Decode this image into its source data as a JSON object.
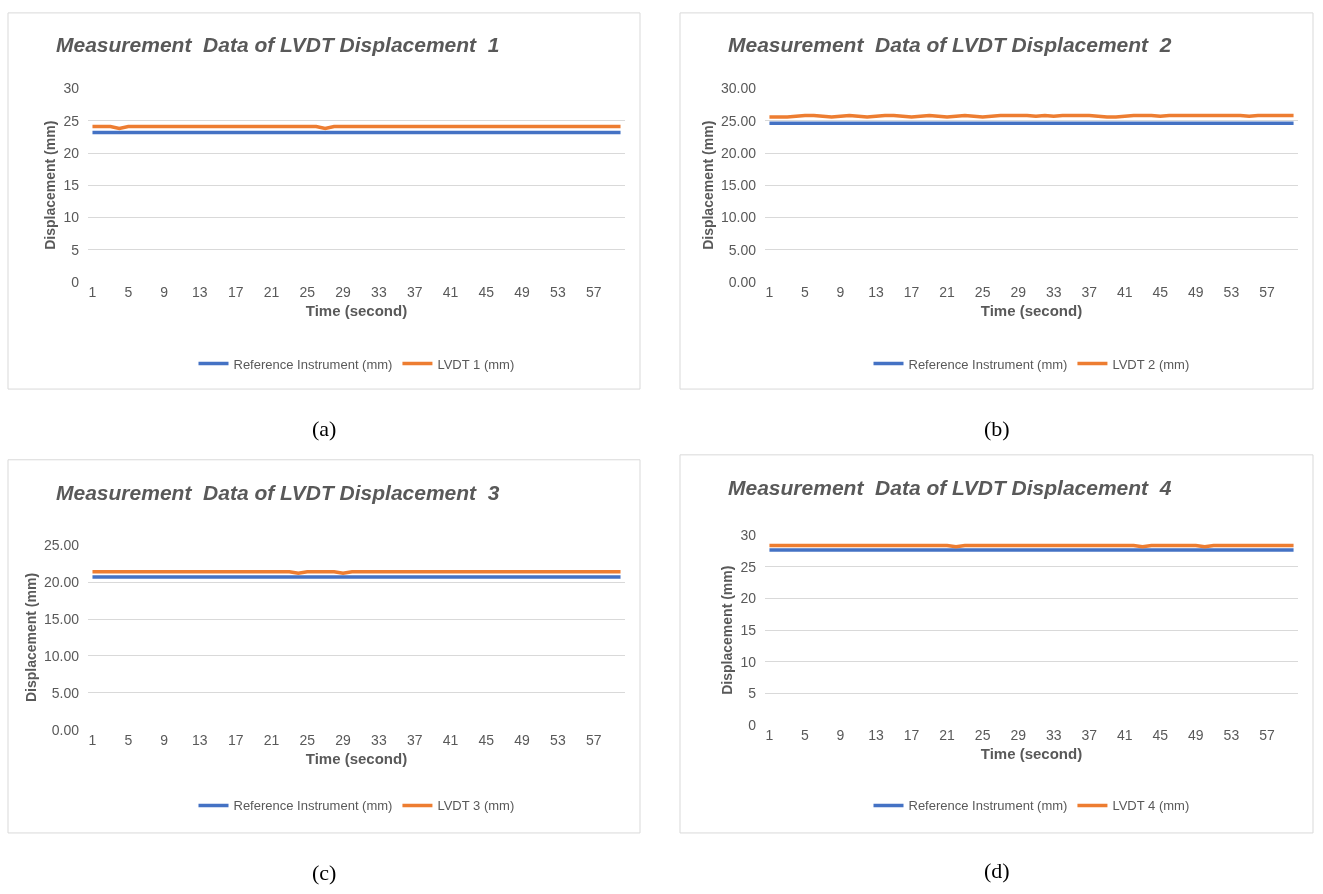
{
  "chart_data": [
    {
      "type": "line",
      "title": "Measurement  Data of LVDT Displacement  1",
      "xlabel": "Time (second)",
      "ylabel": "Displacement (mm)",
      "annotations": [
        "(a)"
      ],
      "grid": "y",
      "legend": "bottom",
      "marker": "none",
      "line_style": "solid",
      "ylim": [
        0,
        30
      ],
      "yticks": [
        0,
        5,
        10,
        15,
        20,
        25,
        30
      ],
      "categories": [
        "1",
        null,
        null,
        null,
        "5",
        null,
        null,
        null,
        "9",
        null,
        null,
        null,
        "13",
        null,
        null,
        null,
        "17",
        null,
        null,
        null,
        "21",
        null,
        null,
        null,
        "25",
        null,
        null,
        null,
        "29",
        null,
        null,
        null,
        "33",
        null,
        null,
        null,
        "37",
        null,
        null,
        null,
        "41",
        null,
        null,
        null,
        "45",
        null,
        null,
        null,
        "49",
        null,
        null,
        null,
        "53",
        null,
        null,
        null,
        "57",
        null,
        null,
        null
      ],
      "series": [
        {
          "name": "Reference Instrument (mm)",
          "color": "#4472c4",
          "values": [
            23.2,
            23.2,
            23.2,
            23.2,
            23.2,
            23.2,
            23.2,
            23.2,
            23.2,
            23.2,
            23.2,
            23.2,
            23.2,
            23.2,
            23.2,
            23.2,
            23.2,
            23.2,
            23.2,
            23.2,
            23.2,
            23.2,
            23.2,
            23.2,
            23.2,
            23.2,
            23.2,
            23.2,
            23.2,
            23.2,
            23.2,
            23.2,
            23.2,
            23.2,
            23.2,
            23.2,
            23.2,
            23.2,
            23.2,
            23.2,
            23.2,
            23.2,
            23.2,
            23.2,
            23.2,
            23.2,
            23.2,
            23.2,
            23.2,
            23.2,
            23.2,
            23.2,
            23.2,
            23.2,
            23.2,
            23.2,
            23.2,
            23.2,
            23.2,
            23.2
          ]
        },
        {
          "name": "LVDT 1 (mm)",
          "color": "#ed7d31",
          "values": [
            24.1,
            24.1,
            24.1,
            23.8,
            24.1,
            24.1,
            24.1,
            24.1,
            24.1,
            24.1,
            24.1,
            24.1,
            24.1,
            24.1,
            24.1,
            24.1,
            24.1,
            24.1,
            24.1,
            24.1,
            24.1,
            24.1,
            24.1,
            24.1,
            24.1,
            24.1,
            23.8,
            24.1,
            24.1,
            24.1,
            24.1,
            24.1,
            24.1,
            24.1,
            24.1,
            24.1,
            24.1,
            24.1,
            24.1,
            24.1,
            24.1,
            24.1,
            24.1,
            24.1,
            24.1,
            24.1,
            24.1,
            24.1,
            24.1,
            24.1,
            24.1,
            24.1,
            24.1,
            24.1,
            24.1,
            24.1,
            24.1,
            24.1,
            24.1,
            24.1
          ]
        }
      ]
    },
    {
      "type": "line",
      "title": "Measurement  Data of LVDT Displacement  2",
      "xlabel": "Time (second)",
      "ylabel": "Displacement (mm)",
      "annotations": [
        "(b)"
      ],
      "grid": "y",
      "legend": "bottom",
      "marker": "none",
      "line_style": "solid",
      "ylim": [
        0,
        30
      ],
      "yticks": [
        {
          "value": 0,
          "label": "0.00"
        },
        {
          "value": 5,
          "label": "5.00"
        },
        {
          "value": 10,
          "label": "10.00"
        },
        {
          "value": 15,
          "label": "15.00"
        },
        {
          "value": 20,
          "label": "20.00"
        },
        {
          "value": 25,
          "label": "25.00"
        },
        {
          "value": 30,
          "label": "30.00"
        }
      ],
      "categories": [
        "1",
        null,
        null,
        null,
        "5",
        null,
        null,
        null,
        "9",
        null,
        null,
        null,
        "13",
        null,
        null,
        null,
        "17",
        null,
        null,
        null,
        "21",
        null,
        null,
        null,
        "25",
        null,
        null,
        null,
        "29",
        null,
        null,
        null,
        "33",
        null,
        null,
        null,
        "37",
        null,
        null,
        null,
        "41",
        null,
        null,
        null,
        "45",
        null,
        null,
        null,
        "49",
        null,
        null,
        null,
        "53",
        null,
        null,
        null,
        "57",
        null,
        null,
        null
      ],
      "series": [
        {
          "name": "Reference Instrument (mm)",
          "color": "#4472c4",
          "values": [
            24.6,
            24.6,
            24.6,
            24.6,
            24.6,
            24.6,
            24.6,
            24.6,
            24.6,
            24.6,
            24.6,
            24.6,
            24.6,
            24.6,
            24.6,
            24.6,
            24.6,
            24.6,
            24.6,
            24.6,
            24.6,
            24.6,
            24.6,
            24.6,
            24.6,
            24.6,
            24.6,
            24.6,
            24.6,
            24.6,
            24.6,
            24.6,
            24.6,
            24.6,
            24.6,
            24.6,
            24.6,
            24.6,
            24.6,
            24.6,
            24.6,
            24.6,
            24.6,
            24.6,
            24.6,
            24.6,
            24.6,
            24.6,
            24.6,
            24.6,
            24.6,
            24.6,
            24.6,
            24.6,
            24.6,
            24.6,
            24.6,
            24.6,
            24.6,
            24.6
          ]
        },
        {
          "name": "LVDT 2 (mm)",
          "color": "#ed7d31",
          "values": [
            25.6,
            25.6,
            25.6,
            25.7,
            25.8,
            25.8,
            25.7,
            25.6,
            25.7,
            25.8,
            25.7,
            25.6,
            25.7,
            25.8,
            25.8,
            25.7,
            25.6,
            25.7,
            25.8,
            25.7,
            25.6,
            25.7,
            25.8,
            25.7,
            25.6,
            25.7,
            25.8,
            25.8,
            25.8,
            25.8,
            25.7,
            25.8,
            25.7,
            25.8,
            25.8,
            25.8,
            25.8,
            25.7,
            25.6,
            25.6,
            25.7,
            25.8,
            25.8,
            25.8,
            25.7,
            25.8,
            25.8,
            25.8,
            25.8,
            25.8,
            25.8,
            25.8,
            25.8,
            25.8,
            25.7,
            25.8,
            25.8,
            25.8,
            25.8,
            25.8
          ]
        }
      ]
    },
    {
      "type": "line",
      "title": "Measurement  Data of LVDT Displacement  3",
      "xlabel": "Time (second)",
      "ylabel": "Displacement (mm)",
      "annotations": [
        "(c)"
      ],
      "grid": "y",
      "legend": "bottom",
      "marker": "none",
      "line_style": "solid",
      "ylim": [
        0,
        25
      ],
      "yticks": [
        {
          "value": 0,
          "label": "0.00"
        },
        {
          "value": 5,
          "label": "5.00"
        },
        {
          "value": 10,
          "label": "10.00"
        },
        {
          "value": 15,
          "label": "15.00"
        },
        {
          "value": 20,
          "label": "20.00"
        },
        {
          "value": 25,
          "label": "25.00"
        }
      ],
      "categories": [
        "1",
        null,
        null,
        null,
        "5",
        null,
        null,
        null,
        "9",
        null,
        null,
        null,
        "13",
        null,
        null,
        null,
        "17",
        null,
        null,
        null,
        "21",
        null,
        null,
        null,
        "25",
        null,
        null,
        null,
        "29",
        null,
        null,
        null,
        "33",
        null,
        null,
        null,
        "37",
        null,
        null,
        null,
        "41",
        null,
        null,
        null,
        "45",
        null,
        null,
        null,
        "49",
        null,
        null,
        null,
        "53",
        null,
        null,
        null,
        "57",
        null,
        null,
        null
      ],
      "series": [
        {
          "name": "Reference Instrument (mm)",
          "color": "#4472c4",
          "values": [
            20.7,
            20.7,
            20.7,
            20.7,
            20.7,
            20.7,
            20.7,
            20.7,
            20.7,
            20.7,
            20.7,
            20.7,
            20.7,
            20.7,
            20.7,
            20.7,
            20.7,
            20.7,
            20.7,
            20.7,
            20.7,
            20.7,
            20.7,
            20.7,
            20.7,
            20.7,
            20.7,
            20.7,
            20.7,
            20.7,
            20.7,
            20.7,
            20.7,
            20.7,
            20.7,
            20.7,
            20.7,
            20.7,
            20.7,
            20.7,
            20.7,
            20.7,
            20.7,
            20.7,
            20.7,
            20.7,
            20.7,
            20.7,
            20.7,
            20.7,
            20.7,
            20.7,
            20.7,
            20.7,
            20.7,
            20.7,
            20.7,
            20.7,
            20.7,
            20.7
          ]
        },
        {
          "name": "LVDT 3 (mm)",
          "color": "#ed7d31",
          "values": [
            21.4,
            21.4,
            21.4,
            21.4,
            21.4,
            21.4,
            21.4,
            21.4,
            21.4,
            21.4,
            21.4,
            21.4,
            21.4,
            21.4,
            21.4,
            21.4,
            21.4,
            21.4,
            21.4,
            21.4,
            21.4,
            21.4,
            21.4,
            21.2,
            21.4,
            21.4,
            21.4,
            21.4,
            21.2,
            21.4,
            21.4,
            21.4,
            21.4,
            21.4,
            21.4,
            21.4,
            21.4,
            21.4,
            21.4,
            21.4,
            21.4,
            21.4,
            21.4,
            21.4,
            21.4,
            21.4,
            21.4,
            21.4,
            21.4,
            21.4,
            21.4,
            21.4,
            21.4,
            21.4,
            21.4,
            21.4,
            21.4,
            21.4,
            21.4,
            21.4
          ]
        }
      ]
    },
    {
      "type": "line",
      "title": "Measurement  Data of LVDT Displacement  4",
      "xlabel": "Time (second)",
      "ylabel": "Displacement (mm)",
      "annotations": [
        "(d)"
      ],
      "grid": "y",
      "legend": "bottom",
      "marker": "none",
      "line_style": "solid",
      "ylim": [
        0,
        30
      ],
      "yticks": [
        0,
        5,
        10,
        15,
        20,
        25,
        30
      ],
      "categories": [
        "1",
        null,
        null,
        null,
        "5",
        null,
        null,
        null,
        "9",
        null,
        null,
        null,
        "13",
        null,
        null,
        null,
        "17",
        null,
        null,
        null,
        "21",
        null,
        null,
        null,
        "25",
        null,
        null,
        null,
        "29",
        null,
        null,
        null,
        "33",
        null,
        null,
        null,
        "37",
        null,
        null,
        null,
        "41",
        null,
        null,
        null,
        "45",
        null,
        null,
        null,
        "49",
        null,
        null,
        null,
        "53",
        null,
        null,
        null,
        "57",
        null,
        null,
        null
      ],
      "series": [
        {
          "name": "Reference Instrument (mm)",
          "color": "#4472c4",
          "values": [
            27.7,
            27.7,
            27.7,
            27.7,
            27.7,
            27.7,
            27.7,
            27.7,
            27.7,
            27.7,
            27.7,
            27.7,
            27.7,
            27.7,
            27.7,
            27.7,
            27.7,
            27.7,
            27.7,
            27.7,
            27.7,
            27.7,
            27.7,
            27.7,
            27.7,
            27.7,
            27.7,
            27.7,
            27.7,
            27.7,
            27.7,
            27.7,
            27.7,
            27.7,
            27.7,
            27.7,
            27.7,
            27.7,
            27.7,
            27.7,
            27.7,
            27.7,
            27.7,
            27.7,
            27.7,
            27.7,
            27.7,
            27.7,
            27.7,
            27.7,
            27.7,
            27.7,
            27.7,
            27.7,
            27.7,
            27.7,
            27.7,
            27.7,
            27.7,
            27.7
          ]
        },
        {
          "name": "LVDT 4 (mm)",
          "color": "#ed7d31",
          "values": [
            28.4,
            28.4,
            28.4,
            28.4,
            28.4,
            28.4,
            28.4,
            28.4,
            28.4,
            28.4,
            28.4,
            28.4,
            28.4,
            28.4,
            28.4,
            28.4,
            28.4,
            28.4,
            28.4,
            28.4,
            28.4,
            28.2,
            28.4,
            28.4,
            28.4,
            28.4,
            28.4,
            28.4,
            28.4,
            28.4,
            28.4,
            28.4,
            28.4,
            28.4,
            28.4,
            28.4,
            28.4,
            28.4,
            28.4,
            28.4,
            28.4,
            28.4,
            28.2,
            28.4,
            28.4,
            28.4,
            28.4,
            28.4,
            28.4,
            28.2,
            28.4,
            28.4,
            28.4,
            28.4,
            28.4,
            28.4,
            28.4,
            28.4,
            28.4,
            28.4
          ]
        }
      ]
    }
  ]
}
